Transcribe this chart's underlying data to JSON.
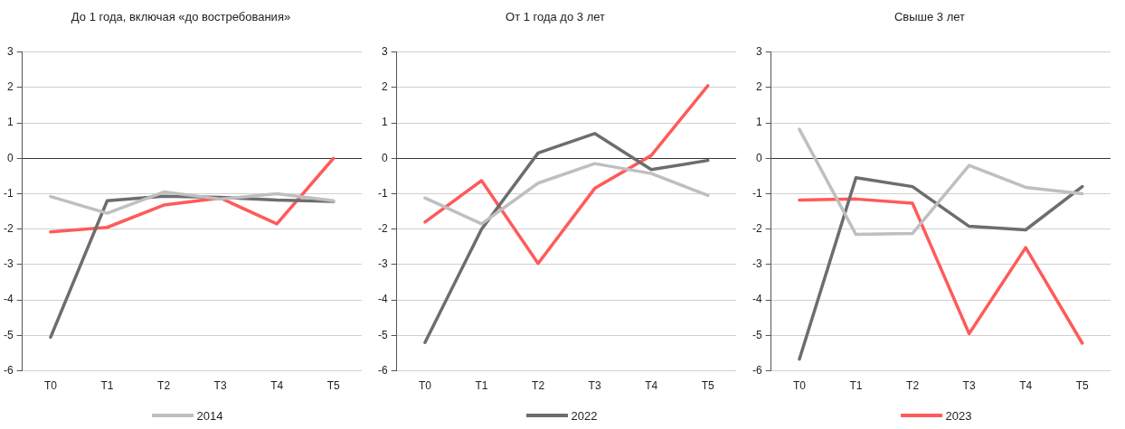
{
  "chart_data": [
    {
      "type": "line",
      "title": "До 1 года, включая «до востребования»",
      "categories": [
        "T0",
        "T1",
        "T2",
        "T3",
        "T4",
        "T5"
      ],
      "series": [
        {
          "name": "2014",
          "color": "#bfbfbf",
          "values": [
            -1.08,
            -1.55,
            -0.95,
            -1.15,
            -1.0,
            -1.2
          ]
        },
        {
          "name": "2022",
          "color": "#6d6d6d",
          "values": [
            -5.05,
            -1.2,
            -1.07,
            -1.1,
            -1.18,
            -1.22
          ]
        },
        {
          "name": "2023",
          "color": "#ff5a5a",
          "values": [
            -2.08,
            -1.95,
            -1.32,
            -1.12,
            -1.85,
            0.0
          ]
        }
      ],
      "ylim": [
        -6,
        3
      ],
      "yticks": [
        -6,
        -5,
        -4,
        -3,
        -2,
        -1,
        0,
        1,
        2,
        3
      ],
      "grid": "y",
      "legend": "bottom",
      "marker": "none",
      "line_style": "solid"
    },
    {
      "type": "line",
      "title": "От 1 года до 3 лет",
      "categories": [
        "T0",
        "T1",
        "T2",
        "T3",
        "T4",
        "T5"
      ],
      "series": [
        {
          "color": "#bfbfbf",
          "values": [
            -1.12,
            -1.85,
            -0.7,
            -0.15,
            -0.43,
            -1.05
          ]
        },
        {
          "color": "#6d6d6d",
          "values": [
            -5.2,
            -2.0,
            0.15,
            0.7,
            -0.32,
            -0.06
          ]
        },
        {
          "color": "#ff5a5a",
          "values": [
            -1.8,
            -0.63,
            -2.97,
            -0.85,
            0.08,
            2.05
          ]
        }
      ],
      "ylim": [
        -6,
        3
      ],
      "yticks": [
        -6,
        -5,
        -4,
        -3,
        -2,
        -1,
        0,
        1,
        2,
        3
      ],
      "grid": "y",
      "marker": "none",
      "line_style": "solid"
    },
    {
      "type": "line",
      "title": "Свыше 3 лет",
      "categories": [
        "T0",
        "T1",
        "T2",
        "T3",
        "T4",
        "T5"
      ],
      "series": [
        {
          "color": "#bfbfbf",
          "values": [
            0.82,
            -2.15,
            -2.12,
            -0.2,
            -0.82,
            -1.0
          ]
        },
        {
          "color": "#6d6d6d",
          "values": [
            -5.67,
            -0.55,
            -0.8,
            -1.92,
            -2.02,
            -0.8
          ]
        },
        {
          "color": "#ff5a5a",
          "values": [
            -1.18,
            -1.15,
            -1.27,
            -4.95,
            -2.52,
            -5.22
          ]
        }
      ],
      "ylim": [
        -6,
        3
      ],
      "yticks": [
        -6,
        -5,
        -4,
        -3,
        -2,
        -1,
        0,
        1,
        2,
        3
      ],
      "grid": "y",
      "marker": "none",
      "line_style": "solid"
    }
  ]
}
